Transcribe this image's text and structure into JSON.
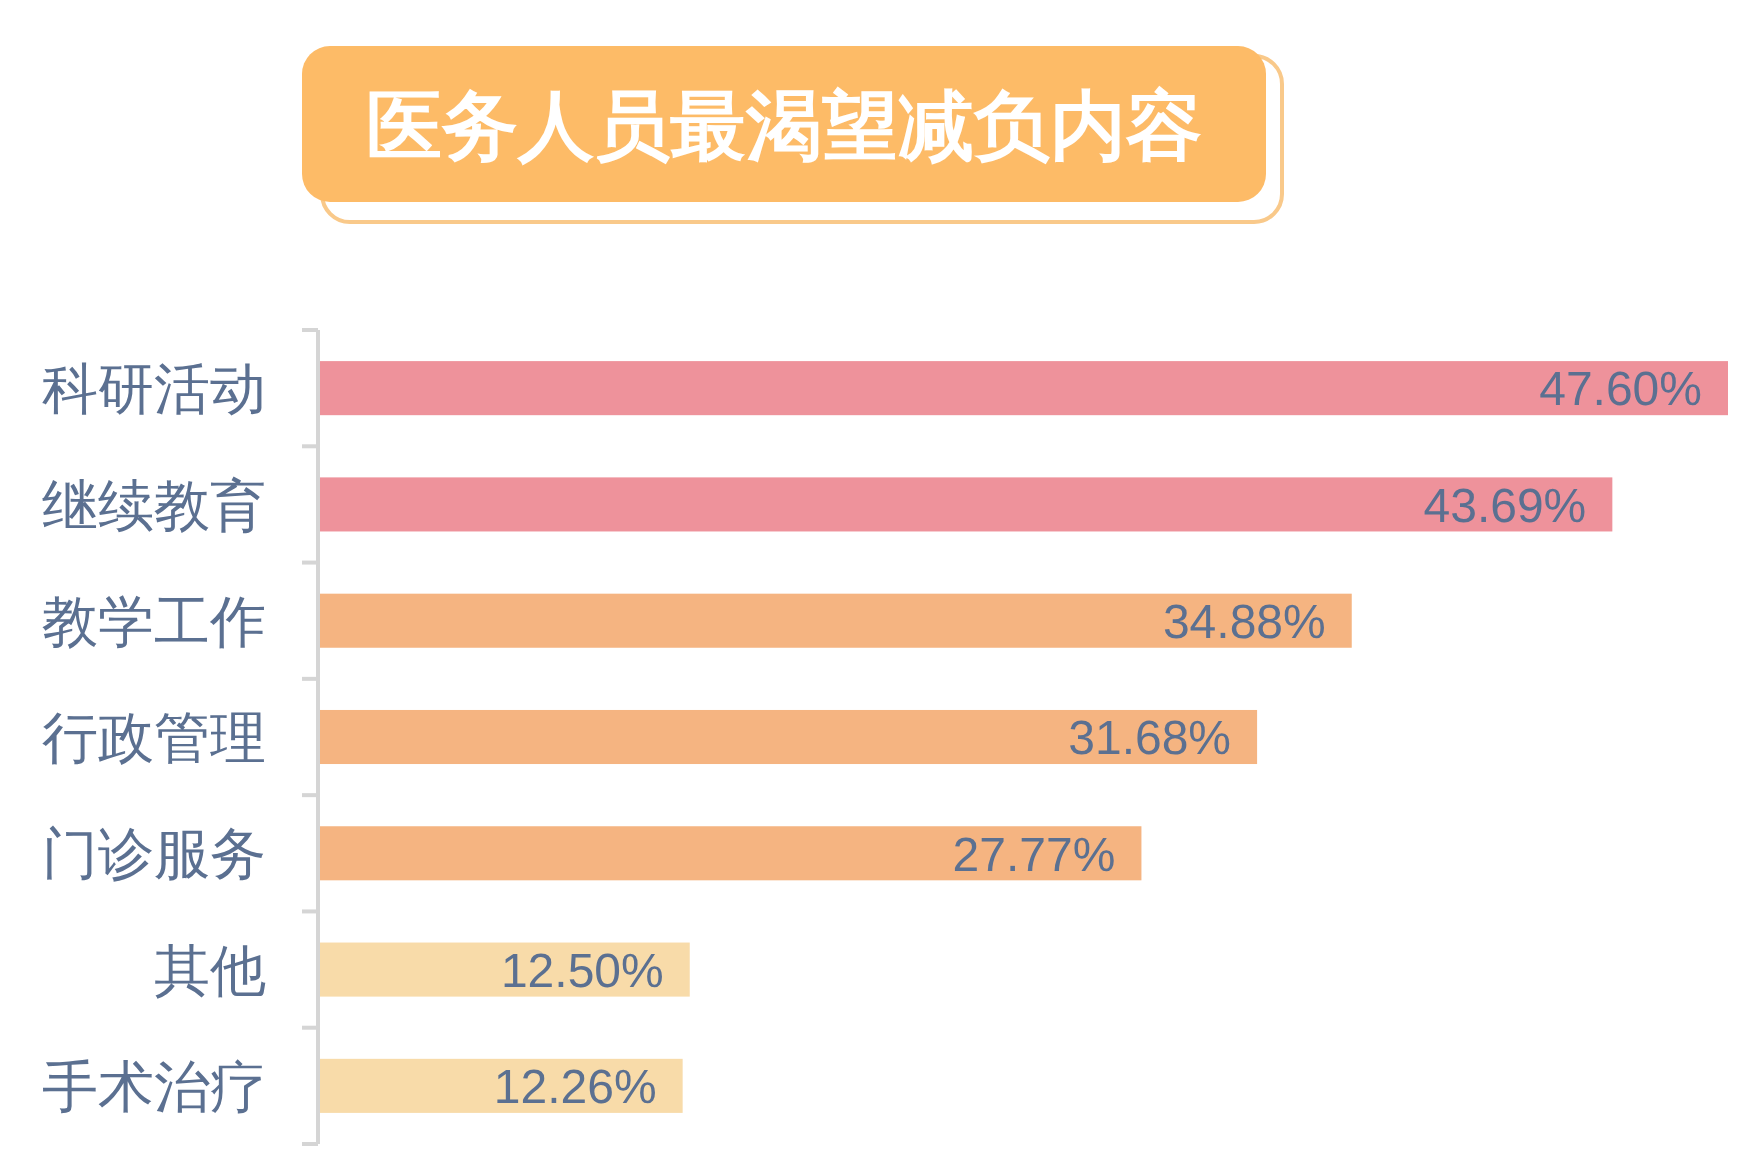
{
  "chart_data": {
    "type": "bar",
    "orientation": "horizontal",
    "title": "医务人员最渴望减负内容",
    "categories": [
      "科研活动",
      "继续教育",
      "教学工作",
      "行政管理",
      "门诊服务",
      "其他",
      "手术治疗"
    ],
    "values": [
      47.6,
      43.69,
      34.88,
      31.68,
      27.77,
      12.5,
      12.26
    ],
    "colors": [
      "#ee929b",
      "#ee929b",
      "#f5b481",
      "#f5b481",
      "#f5b481",
      "#f8dba9",
      "#f8dba9"
    ],
    "value_labels": [
      "47.60%",
      "43.69%",
      "34.88%",
      "31.68%",
      "27.77%",
      "12.50%",
      "12.26%"
    ],
    "tick_labels": "y"
  }
}
